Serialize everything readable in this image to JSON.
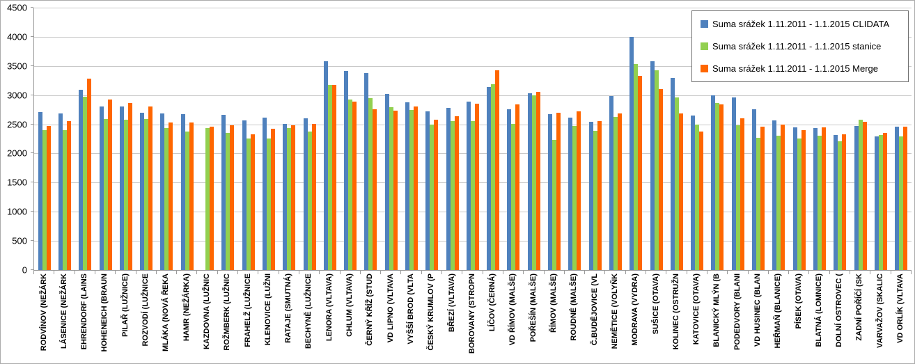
{
  "colors": {
    "background": "#FFFFFF",
    "border": "#ABABAB",
    "gridline": "#C9C9C9",
    "axis": "#9B9B9B",
    "legend_border": "#6E6E6E"
  },
  "chart_data": {
    "type": "bar",
    "title": "",
    "xlabel": "",
    "ylabel": "",
    "grid": true,
    "legend_position": "top-right",
    "y_axis": {
      "min": 0,
      "max": 4500,
      "step": 500,
      "ticks": [
        "0",
        "500",
        "1000",
        "1500",
        "2000",
        "2500",
        "3000",
        "3500",
        "4000",
        "4500"
      ]
    },
    "categories": [
      "RODVÍNOV (NEŽÁRK",
      "LÁSENICE (NEŽÁRK",
      "EHRENDORF (LAINS",
      "HOHENEICH (BRAUN",
      "PILAŘ (LUŽNICE)",
      "ROZVODÍ (LUŽNICE",
      "MLÁKA (NOVÁ ŘEKA",
      "HAMR (NEŽÁRKA)",
      "KAZDOVNA (LUŽNIC",
      "ROŽMBERK (LUŽNIC",
      "FRAHELŽ (LUŽNICE",
      "KLENOVICE (LUŽNI",
      "RATAJE (SMUTNÁ)",
      "BECHYNĚ (LUŽNICE",
      "LENORA (VLTAVA)",
      "CHLUM (VLTAVA)",
      "ČERNÝ KŘÍŽ (STUD",
      "VD LIPNO (VLTAVA",
      "VYŠŠÍ BROD (VLTA",
      "ČESKÝ KRUMLOV (P",
      "BŘEZÍ (VLTAVA)",
      "BOROVANY (STROPN",
      "LÍČOV (ČERNÁ)",
      "VD ŘÍMOV (MALŠE)",
      "POŘEŠÍN (MALŠE)",
      "ŘÍMOV (MALŠE)",
      "ROUDNÉ (MALŠE)",
      "Č.BUDĚJOVICE (VL",
      "NEMĚTICE (VOLYŇK",
      "MODRAVA (VYDRA)",
      "SUŠICE (OTAVA)",
      "KOLINEC (OSTRUŽN",
      "KATOVICE (OTAVA)",
      "BLANICKÝ MLÝN (B",
      "PODEDVORY (BLANI",
      "VD HUSINEC (BLAN",
      "HEŘMAŇ (BLANICE)",
      "PÍSEK (OTAVA)",
      "BLATNÁ (LOMNICE)",
      "DOLNÍ OSTROVEC (",
      "ZADNÍ POŘÍČÍ (SK",
      "VARVAŽOV (SKALIC",
      "VD ORLÍK (VLTAVA"
    ],
    "series": [
      {
        "name": "Suma srážek 1.11.2011 - 1.1.2015 CLIDATA",
        "color": "#4F81BD",
        "values": [
          2710,
          2680,
          3090,
          2800,
          2810,
          2700,
          2680,
          2670,
          null,
          2660,
          2570,
          2610,
          2510,
          2600,
          3580,
          3410,
          3380,
          3020,
          2880,
          2720,
          2780,
          2890,
          3140,
          2760,
          3030,
          2670,
          2610,
          2540,
          2980,
          4000,
          3580,
          3300,
          2650,
          3000,
          2960,
          2760,
          2570,
          2450,
          2430,
          2320,
          2470,
          2290,
          2460
        ]
      },
      {
        "name": "Suma srážek 1.11.2011 - 1.1.2015 stanice",
        "color": "#92D050",
        "values": [
          2400,
          2400,
          2970,
          2590,
          2580,
          2590,
          2440,
          2380,
          2430,
          2350,
          2250,
          2260,
          2440,
          2370,
          3170,
          2920,
          2950,
          2790,
          2750,
          2500,
          2560,
          2560,
          3190,
          2510,
          3000,
          2230,
          2470,
          2390,
          2630,
          3530,
          3420,
          2960,
          2500,
          2870,
          2480,
          2270,
          2300,
          2260,
          2300,
          2210,
          2580,
          2310,
          2290
        ]
      },
      {
        "name": "Suma srážek 1.11.2011 - 1.1.2015 Merge",
        "color": "#FF6600",
        "values": [
          2470,
          2550,
          3280,
          2920,
          2870,
          2800,
          2530,
          2530,
          2460,
          2480,
          2330,
          2420,
          2480,
          2510,
          3170,
          2890,
          2760,
          2730,
          2800,
          2580,
          2640,
          2850,
          3420,
          2840,
          3060,
          2700,
          2720,
          2560,
          2690,
          3330,
          3100,
          2680,
          2380,
          2840,
          2600,
          2460,
          2500,
          2400,
          2450,
          2330,
          2540,
          2350,
          2460
        ]
      }
    ]
  }
}
